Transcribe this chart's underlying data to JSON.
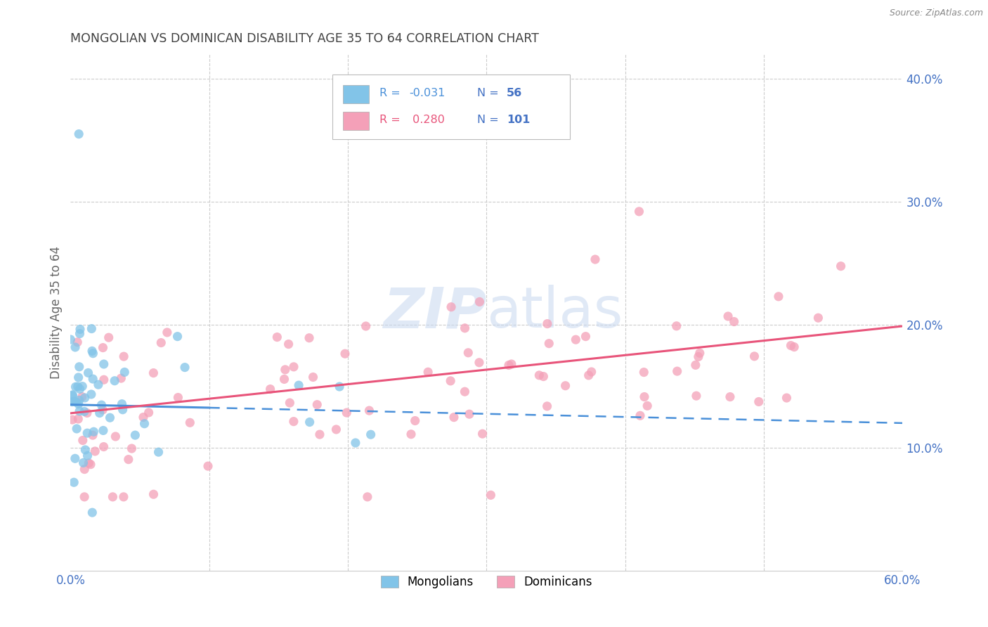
{
  "title": "MONGOLIAN VS DOMINICAN DISABILITY AGE 35 TO 64 CORRELATION CHART",
  "source": "Source: ZipAtlas.com",
  "ylabel": "Disability Age 35 to 64",
  "xlim": [
    0.0,
    0.6
  ],
  "ylim": [
    0.0,
    0.42
  ],
  "y_ticks": [
    0.1,
    0.2,
    0.3,
    0.4
  ],
  "y_tick_labels": [
    "10.0%",
    "20.0%",
    "30.0%",
    "40.0%"
  ],
  "mongolian_color": "#82c4e8",
  "dominican_color": "#f4a0b8",
  "mongolian_line_color": "#4a90d9",
  "dominican_line_color": "#e8547a",
  "mongolian_R": -0.031,
  "mongolian_N": 56,
  "dominican_R": 0.28,
  "dominican_N": 101,
  "grid_color": "#cccccc",
  "background_color": "#ffffff",
  "title_color": "#404040",
  "tick_color": "#4472c4",
  "watermark_color": "#c8d8f0",
  "mongolian_line_y0": 0.135,
  "mongolian_line_slope": -0.025,
  "dominican_line_y0": 0.128,
  "dominican_line_slope": 0.118
}
